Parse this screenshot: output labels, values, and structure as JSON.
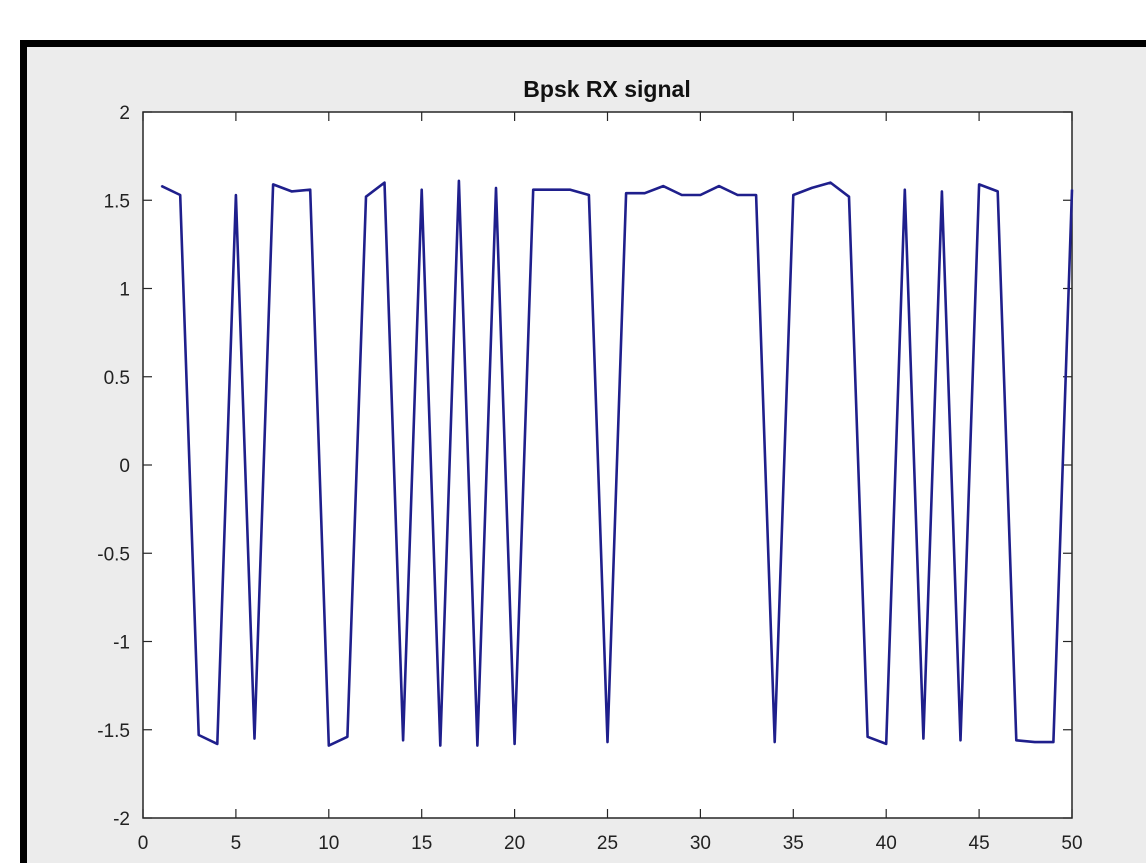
{
  "chart_data": {
    "type": "line",
    "title": "Bpsk RX signal",
    "xlabel": "",
    "ylabel": "",
    "xlim": [
      0,
      50
    ],
    "ylim": [
      -2,
      2
    ],
    "xticks": [
      "0",
      "5",
      "10",
      "15",
      "20",
      "25",
      "30",
      "35",
      "40",
      "45",
      "50"
    ],
    "yticks": [
      "2",
      "1.5",
      "1",
      "0.5",
      "0",
      "-0.5",
      "-1",
      "-1.5",
      "-2"
    ],
    "grid": false,
    "series": [
      {
        "color": "#1f1f8c",
        "x": [
          1,
          2,
          3,
          4,
          5,
          6,
          7,
          8,
          9,
          10,
          11,
          12,
          13,
          14,
          15,
          16,
          17,
          18,
          19,
          20,
          21,
          22,
          23,
          24,
          25,
          26,
          27,
          28,
          29,
          30,
          31,
          32,
          33,
          34,
          35,
          36,
          37,
          38,
          39,
          40,
          41,
          42,
          43,
          44,
          45,
          46,
          47,
          48,
          49,
          50
        ],
        "y": [
          1.58,
          1.53,
          -1.53,
          -1.58,
          1.53,
          -1.55,
          1.59,
          1.55,
          1.56,
          -1.59,
          -1.54,
          1.52,
          1.6,
          -1.56,
          1.56,
          -1.59,
          1.61,
          -1.59,
          1.57,
          -1.58,
          1.56,
          1.56,
          1.56,
          1.53,
          -1.57,
          1.54,
          1.54,
          1.58,
          1.53,
          1.53,
          1.58,
          1.53,
          1.53,
          -1.57,
          1.53,
          1.57,
          1.6,
          1.52,
          -1.54,
          -1.58,
          1.56,
          -1.55,
          1.55,
          -1.56,
          1.59,
          1.55,
          -1.56,
          -1.57,
          -1.57,
          1.56
        ]
      }
    ]
  }
}
